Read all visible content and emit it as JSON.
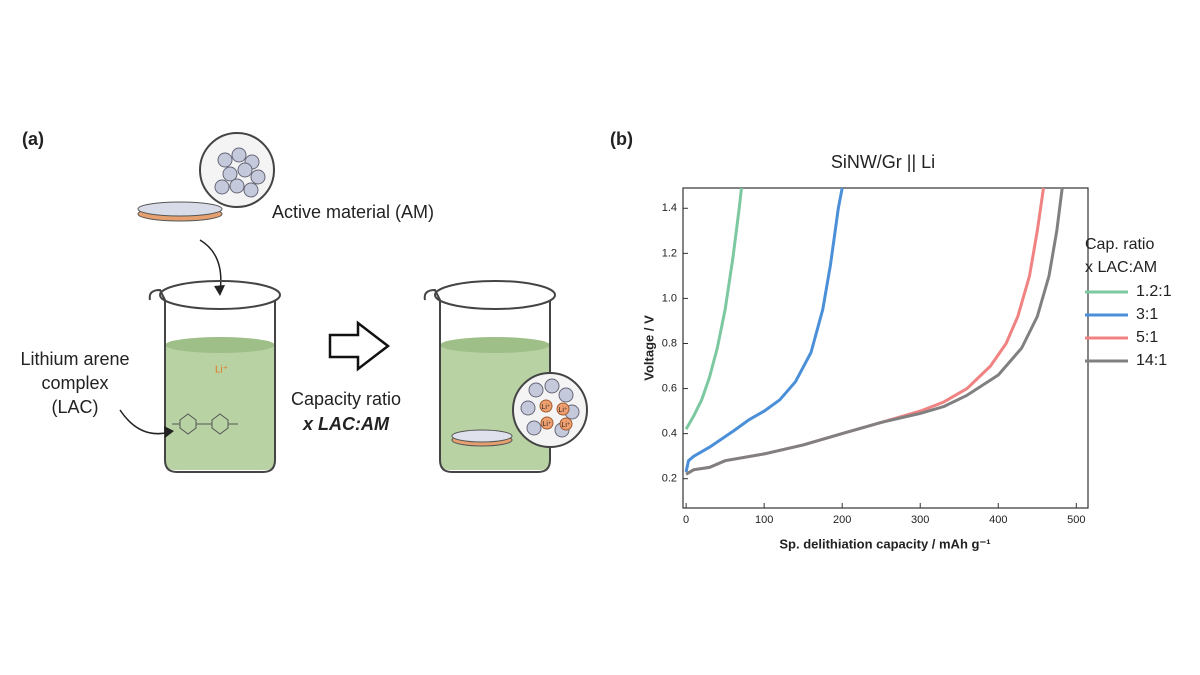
{
  "panel_a": {
    "label": "(a)",
    "active_material": "Active material (AM)",
    "lac_lines": [
      "Lithium arene",
      "complex",
      "(LAC)"
    ],
    "li_ion": "Li⁺",
    "ratio_lines": [
      "Capacity ratio",
      "x LAC:AM"
    ]
  },
  "chart_data": {
    "type": "line",
    "panel_label": "(b)",
    "title": "SiNW/Gr || Li",
    "x_label": "Sp. delithiation capacity / mAh g⁻¹",
    "y_label": "Voltage / V",
    "legend_title": [
      "Cap. ratio",
      "x LAC:AM"
    ],
    "legend": "right",
    "xlim": [
      -4,
      515
    ],
    "ylim": [
      0.07,
      1.49
    ],
    "xticks": [
      0,
      100,
      200,
      300,
      400,
      500
    ],
    "yticks": [
      0.2,
      0.4,
      0.6,
      0.8,
      {
        "value": 1,
        "label": "1.0"
      },
      1.2,
      1.4
    ],
    "series": [
      {
        "name": "1.2:1",
        "color": "#7cc8a0",
        "x": [
          0,
          10,
          20,
          30,
          40,
          50,
          60,
          68,
          71
        ],
        "values": [
          0.42,
          0.48,
          0.55,
          0.65,
          0.78,
          0.95,
          1.18,
          1.4,
          1.49
        ]
      },
      {
        "name": "3:1",
        "color": "#4a8fd8",
        "x": [
          0,
          3,
          10,
          30,
          60,
          80,
          100,
          120,
          140,
          160,
          175,
          185,
          195,
          200
        ],
        "values": [
          0.23,
          0.28,
          0.3,
          0.34,
          0.41,
          0.46,
          0.5,
          0.55,
          0.63,
          0.76,
          0.95,
          1.15,
          1.4,
          1.49
        ]
      },
      {
        "name": "5:1",
        "color": "#f08282",
        "x": [
          0,
          10,
          30,
          50,
          100,
          150,
          200,
          250,
          300,
          330,
          360,
          390,
          410,
          425,
          440,
          450,
          458
        ],
        "values": [
          0.22,
          0.24,
          0.25,
          0.28,
          0.31,
          0.35,
          0.4,
          0.45,
          0.5,
          0.54,
          0.6,
          0.7,
          0.8,
          0.92,
          1.1,
          1.3,
          1.49
        ]
      },
      {
        "name": "14:1",
        "color": "#808080",
        "x": [
          0,
          10,
          30,
          50,
          100,
          150,
          200,
          250,
          300,
          330,
          360,
          400,
          430,
          450,
          465,
          475,
          482
        ],
        "values": [
          0.22,
          0.24,
          0.25,
          0.28,
          0.31,
          0.35,
          0.4,
          0.45,
          0.49,
          0.52,
          0.57,
          0.66,
          0.78,
          0.92,
          1.1,
          1.3,
          1.49
        ]
      }
    ]
  }
}
